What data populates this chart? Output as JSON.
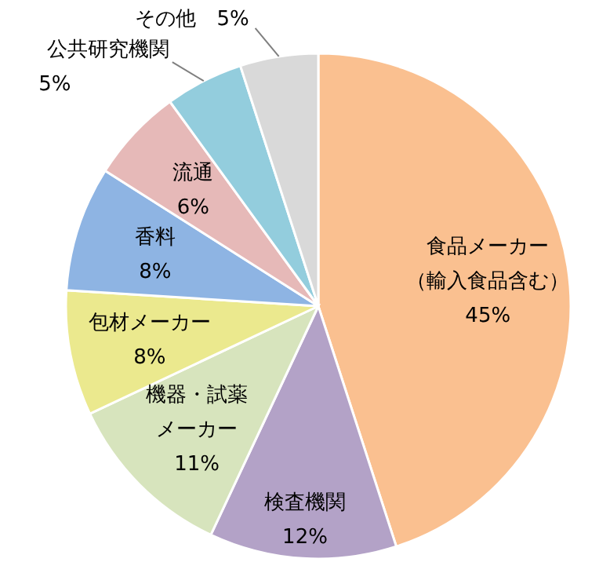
{
  "chart_data": {
    "type": "pie",
    "categories": [
      "食品メーカー（輸入食品含む）",
      "検査機関",
      "機器・試薬メーカー",
      "包材メーカー",
      "香料",
      "流通",
      "公共研究機関",
      "その他"
    ],
    "values": [
      45,
      12,
      11,
      8,
      8,
      6,
      5,
      5
    ],
    "value_labels": [
      "45%",
      "12%",
      "11%",
      "8%",
      "8%",
      "6%",
      "5%",
      "5%"
    ],
    "colors": [
      "#fac090",
      "#b3a2c7",
      "#d7e4bd",
      "#ebe98e",
      "#8eb4e3",
      "#e6b9b8",
      "#93cddd",
      "#d9d9d9"
    ]
  }
}
